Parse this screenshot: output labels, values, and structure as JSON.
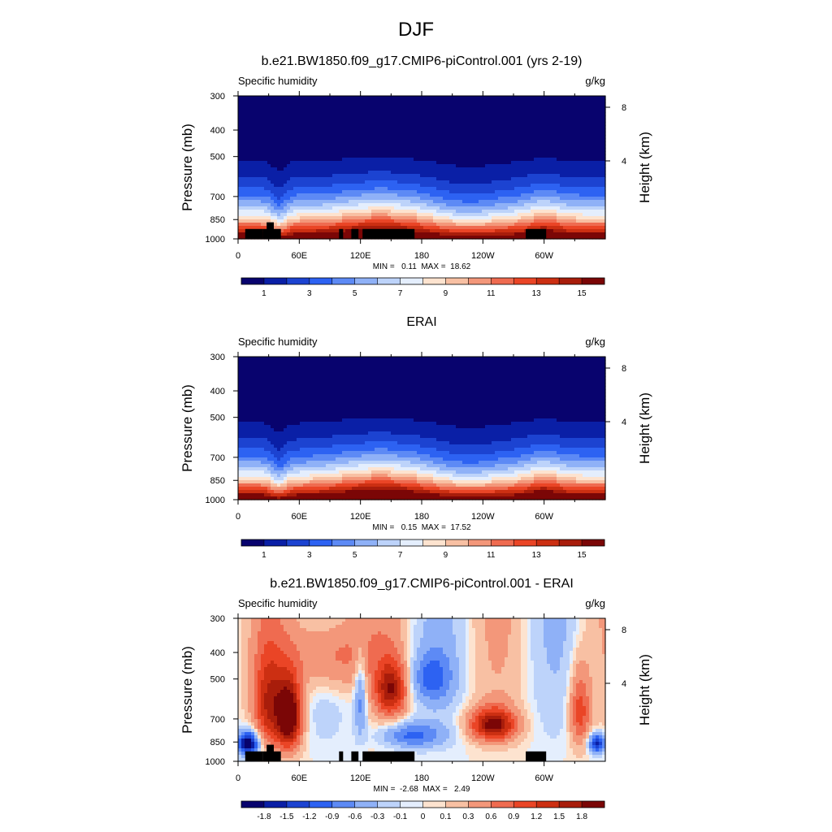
{
  "figure": {
    "season_title": "DJF"
  },
  "chart_data": [
    {
      "type": "heatmap",
      "title": "b.e21.BW1850.f09_g17.CMIP6-piControl.001 (yrs 2-19)",
      "left_string": "Specific humidity",
      "right_string": "g/kg",
      "ylabel": "Pressure (mb)",
      "ylabel_right": "Height (km)",
      "x_ticks": [
        "0",
        "60E",
        "120E",
        "180",
        "120W",
        "60W"
      ],
      "y_ticks": [
        "300",
        "400",
        "500",
        "700",
        "850",
        "1000"
      ],
      "right_ticks": [
        "8",
        "4"
      ],
      "stats": "MIN =   0.11  MAX =  18.62",
      "colorbar_labels": [
        "1",
        "3",
        "5",
        "7",
        "9",
        "11",
        "13",
        "15"
      ],
      "colorbar_colors": [
        "#08036e",
        "#0a1fa6",
        "#1c43d1",
        "#2d62f2",
        "#5d8af5",
        "#8fb1f7",
        "#bdd3fa",
        "#e4eefd",
        "#fde3cf",
        "#f8c0a3",
        "#f3977a",
        "#ef6b50",
        "#ea4526",
        "#cc2f12",
        "#a81d0b",
        "#7b0606"
      ]
    },
    {
      "type": "heatmap",
      "title": "ERAI",
      "left_string": "Specific humidity",
      "right_string": "g/kg",
      "ylabel": "Pressure (mb)",
      "ylabel_right": "Height (km)",
      "x_ticks": [
        "0",
        "60E",
        "120E",
        "180",
        "120W",
        "60W"
      ],
      "y_ticks": [
        "300",
        "400",
        "500",
        "700",
        "850",
        "1000"
      ],
      "right_ticks": [
        "8",
        "4"
      ],
      "stats": "MIN =   0.15  MAX =  17.52",
      "colorbar_labels": [
        "1",
        "3",
        "5",
        "7",
        "9",
        "11",
        "13",
        "15"
      ],
      "colorbar_colors": [
        "#08036e",
        "#0a1fa6",
        "#1c43d1",
        "#2d62f2",
        "#5d8af5",
        "#8fb1f7",
        "#bdd3fa",
        "#e4eefd",
        "#fde3cf",
        "#f8c0a3",
        "#f3977a",
        "#ef6b50",
        "#ea4526",
        "#cc2f12",
        "#a81d0b",
        "#7b0606"
      ]
    },
    {
      "type": "heatmap",
      "title": "b.e21.BW1850.f09_g17.CMIP6-piControl.001 - ERAI",
      "left_string": "Specific humidity",
      "right_string": "g/kg",
      "ylabel": "Pressure (mb)",
      "ylabel_right": "Height (km)",
      "x_ticks": [
        "0",
        "60E",
        "120E",
        "180",
        "120W",
        "60W"
      ],
      "y_ticks": [
        "300",
        "400",
        "500",
        "700",
        "850",
        "1000"
      ],
      "right_ticks": [
        "8",
        "4"
      ],
      "stats": "MIN =  -2.68  MAX =   2.49",
      "colorbar_labels": [
        "-1.8",
        "-1.5",
        "-1.2",
        "-0.9",
        "-0.6",
        "-0.3",
        "-0.1",
        "0",
        "0.1",
        "0.3",
        "0.6",
        "0.9",
        "1.2",
        "1.5",
        "1.8"
      ],
      "colorbar_colors": [
        "#08036e",
        "#0a1fa6",
        "#1c43d1",
        "#2d62f2",
        "#5d8af5",
        "#8fb1f7",
        "#bdd3fa",
        "#e4eefd",
        "#fde3cf",
        "#f8c0a3",
        "#f3977a",
        "#ef6b50",
        "#ea4526",
        "#cc2f12",
        "#a81d0b",
        "#7b0606"
      ]
    }
  ]
}
